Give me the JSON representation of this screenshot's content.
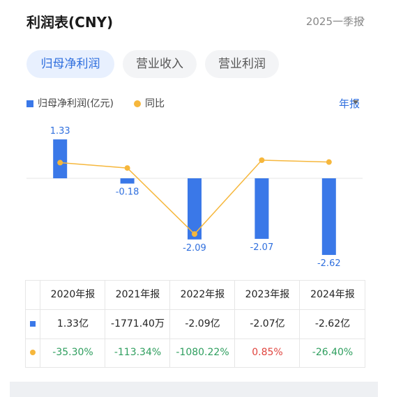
{
  "header": {
    "title": "利润表(CNY)",
    "period": "2025一季报",
    "period_arrow": "›"
  },
  "tabs": [
    {
      "label": "归母净利润",
      "active": true
    },
    {
      "label": "营业收入",
      "active": false
    },
    {
      "label": "营业利润",
      "active": false
    }
  ],
  "legend": {
    "series1": "归母净利润(亿元)",
    "series2": "同比"
  },
  "freq_label": "年报",
  "colors": {
    "bar": "#3a78e8",
    "line": "#f6b73c",
    "accent": "#2f6fde",
    "positive": "#e0443e",
    "negative": "#2e9e5e"
  },
  "chart_data": {
    "type": "bar",
    "categories": [
      "2020年报",
      "2021年报",
      "2022年报",
      "2023年报",
      "2024年报"
    ],
    "series": [
      {
        "name": "归母净利润(亿元)",
        "values": [
          1.33,
          -0.18,
          -2.09,
          -2.07,
          -2.62
        ],
        "labels": [
          "1.33",
          "-0.18",
          "-2.09",
          "-2.07",
          "-2.62"
        ]
      },
      {
        "name": "同比",
        "type": "line",
        "values": [
          -35.3,
          -113.34,
          -1080.22,
          0.85,
          -26.4
        ]
      }
    ]
  },
  "table": {
    "headers": [
      "2020年报",
      "2021年报",
      "2022年报",
      "2023年报",
      "2024年报"
    ],
    "profit_row": [
      "1.33亿",
      "-1771.40万",
      "-2.09亿",
      "-2.07亿",
      "-2.62亿"
    ],
    "yoy_row": [
      "-35.30%",
      "-113.34%",
      "-1080.22%",
      "0.85%",
      "-26.40%"
    ],
    "yoy_sign": [
      "neg",
      "neg",
      "neg",
      "pos",
      "neg"
    ]
  }
}
